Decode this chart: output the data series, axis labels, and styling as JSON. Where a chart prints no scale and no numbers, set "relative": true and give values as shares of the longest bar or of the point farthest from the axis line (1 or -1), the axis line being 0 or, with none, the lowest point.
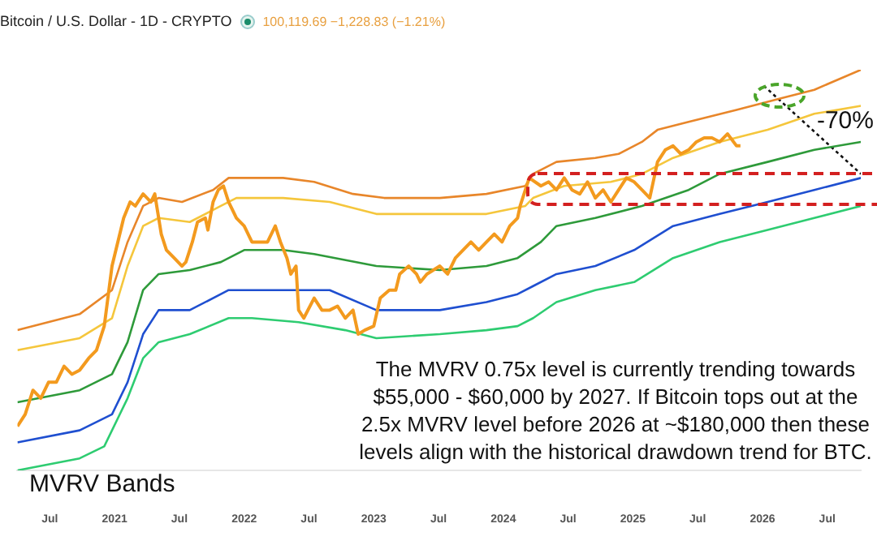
{
  "chart_data": {
    "type": "line",
    "relative": true,
    "title": "Bitcoin / U.S. Dollar - 1D - CRYPTO",
    "subtitle": "100,119.69 −1,228.83 (−1.21%)",
    "annotations": [
      "-70%",
      "MVRV Bands",
      "The MVRV 0.75x level is currently trending towards $55,000 - $60,000 by 2027. If Bitcoin tops out at the 2.5x MVRV level before 2026 at ~$180,000 then these levels align with the historical drawdown trend for BTC."
    ],
    "xlim": [
      2020.25,
      2026.76
    ],
    "xticks": [
      {
        "value": 2020.5,
        "label": "Jul"
      },
      2021,
      {
        "value": 2021.5,
        "label": "Jul"
      },
      2022,
      {
        "value": 2022.5,
        "label": "Jul"
      },
      2023,
      {
        "value": 2023.5,
        "label": "Jul"
      },
      2024,
      {
        "value": 2024.5,
        "label": "Jul"
      },
      2025,
      {
        "value": 2025.5,
        "label": "Jul"
      },
      2026,
      {
        "value": 2026.5,
        "label": "Jul"
      }
    ],
    "grid": false,
    "legend": false,
    "line_style": "solid",
    "marker": "none",
    "series": [
      {
        "color": "#e8862a",
        "x": [
          2020.25,
          2020.73,
          2020.98,
          2021.1,
          2021.22,
          2021.34,
          2021.52,
          2021.76,
          2021.88,
          2022.0,
          2022.3,
          2022.54,
          2022.84,
          2023.08,
          2023.51,
          2023.87,
          2024.17,
          2024.23,
          2024.41,
          2024.71,
          2024.89,
          2025.07,
          2025.19,
          2025.43,
          2025.8,
          2026.16,
          2026.4,
          2026.76
        ],
        "values": [
          0.35,
          0.39,
          0.45,
          0.57,
          0.66,
          0.68,
          0.67,
          0.7,
          0.73,
          0.73,
          0.73,
          0.72,
          0.69,
          0.68,
          0.68,
          0.69,
          0.71,
          0.74,
          0.77,
          0.78,
          0.79,
          0.82,
          0.85,
          0.87,
          0.9,
          0.93,
          0.95,
          1.0
        ]
      },
      {
        "color": "#f5c63c",
        "x": [
          2020.25,
          2020.73,
          2020.98,
          2021.1,
          2021.22,
          2021.34,
          2021.58,
          2021.82,
          2021.94,
          2022.3,
          2022.66,
          2023.02,
          2023.51,
          2023.87,
          2024.17,
          2024.23,
          2024.47,
          2024.83,
          2025.07,
          2025.31,
          2025.67,
          2026.04,
          2026.4,
          2026.76
        ],
        "values": [
          0.3,
          0.33,
          0.38,
          0.51,
          0.61,
          0.63,
          0.62,
          0.66,
          0.68,
          0.68,
          0.67,
          0.64,
          0.64,
          0.64,
          0.66,
          0.68,
          0.71,
          0.72,
          0.74,
          0.78,
          0.82,
          0.85,
          0.89,
          0.91
        ]
      },
      {
        "color": "#2e9a3a",
        "x": [
          2020.25,
          2020.73,
          2020.98,
          2021.1,
          2021.22,
          2021.34,
          2021.58,
          2021.82,
          2022.0,
          2022.3,
          2022.54,
          2023.02,
          2023.51,
          2023.87,
          2024.11,
          2024.29,
          2024.41,
          2024.71,
          2025.07,
          2025.43,
          2025.67,
          2026.04,
          2026.4,
          2026.76
        ],
        "values": [
          0.17,
          0.2,
          0.24,
          0.32,
          0.45,
          0.49,
          0.5,
          0.52,
          0.55,
          0.55,
          0.54,
          0.51,
          0.5,
          0.51,
          0.53,
          0.57,
          0.61,
          0.63,
          0.66,
          0.7,
          0.74,
          0.77,
          0.8,
          0.82
        ]
      },
      {
        "color": "#1f4fd0",
        "x": [
          2020.25,
          2020.73,
          2020.98,
          2021.1,
          2021.22,
          2021.34,
          2021.58,
          2021.88,
          2022.06,
          2022.3,
          2022.66,
          2023.02,
          2023.51,
          2023.87,
          2024.11,
          2024.23,
          2024.41,
          2024.71,
          2025.01,
          2025.31,
          2025.67,
          2026.04,
          2026.4,
          2026.76
        ],
        "values": [
          0.07,
          0.1,
          0.14,
          0.22,
          0.34,
          0.4,
          0.4,
          0.45,
          0.45,
          0.45,
          0.45,
          0.4,
          0.4,
          0.42,
          0.44,
          0.46,
          0.49,
          0.51,
          0.55,
          0.61,
          0.64,
          0.67,
          0.7,
          0.73
        ]
      },
      {
        "color": "#2ecc71",
        "x": [
          2020.25,
          2020.73,
          2020.92,
          2021.1,
          2021.22,
          2021.34,
          2021.58,
          2021.88,
          2022.06,
          2022.42,
          2022.78,
          2023.02,
          2023.51,
          2023.87,
          2024.11,
          2024.23,
          2024.41,
          2024.71,
          2025.01,
          2025.31,
          2025.67,
          2026.04,
          2026.4,
          2026.76
        ],
        "values": [
          0,
          0.03,
          0.06,
          0.18,
          0.28,
          0.32,
          0.34,
          0.38,
          0.38,
          0.37,
          0.35,
          0.33,
          0.34,
          0.35,
          0.36,
          0.38,
          0.42,
          0.45,
          0.47,
          0.53,
          0.57,
          0.6,
          0.63,
          0.66
        ]
      },
      {
        "color": "#111111",
        "line_style": "dotted",
        "x": [
          2026.01,
          2026.76
        ],
        "values": [
          0.96,
          0.74
        ]
      },
      {
        "color": "#f39a1e",
        "x": [
          2020.25,
          2020.31,
          2020.37,
          2020.43,
          2020.49,
          2020.55,
          2020.61,
          2020.67,
          2020.73,
          2020.8,
          2020.86,
          2020.92,
          2020.98,
          2021.01,
          2021.07,
          2021.12,
          2021.16,
          2021.22,
          2021.28,
          2021.31,
          2021.36,
          2021.4,
          2021.46,
          2021.52,
          2021.55,
          2021.6,
          2021.64,
          2021.7,
          2021.72,
          2021.76,
          2021.8,
          2021.84,
          2021.88,
          2021.94,
          2022.0,
          2022.06,
          2022.12,
          2022.18,
          2022.24,
          2022.28,
          2022.33,
          2022.36,
          2022.4,
          2022.42,
          2022.46,
          2022.54,
          2022.6,
          2022.66,
          2022.72,
          2022.78,
          2022.84,
          2022.88,
          2022.93,
          2023.0,
          2023.05,
          2023.12,
          2023.17,
          2023.2,
          2023.27,
          2023.33,
          2023.36,
          2023.41,
          2023.51,
          2023.57,
          2023.63,
          2023.75,
          2023.81,
          2023.87,
          2023.93,
          2023.99,
          2024.05,
          2024.11,
          2024.13,
          2024.17,
          2024.2,
          2024.29,
          2024.35,
          2024.41,
          2024.47,
          2024.53,
          2024.59,
          2024.65,
          2024.71,
          2024.77,
          2024.83,
          2024.89,
          2024.95,
          2025.01,
          2025.07,
          2025.13,
          2025.19,
          2025.25,
          2025.31,
          2025.37,
          2025.43,
          2025.49,
          2025.55,
          2025.61,
          2025.67,
          2025.73,
          2025.8,
          2025.83
        ],
        "values": [
          0.11,
          0.14,
          0.2,
          0.18,
          0.22,
          0.22,
          0.26,
          0.24,
          0.25,
          0.28,
          0.3,
          0.36,
          0.51,
          0.55,
          0.63,
          0.67,
          0.66,
          0.69,
          0.67,
          0.69,
          0.59,
          0.55,
          0.53,
          0.51,
          0.52,
          0.57,
          0.62,
          0.63,
          0.6,
          0.67,
          0.7,
          0.71,
          0.67,
          0.63,
          0.61,
          0.57,
          0.57,
          0.57,
          0.61,
          0.57,
          0.53,
          0.49,
          0.51,
          0.4,
          0.38,
          0.43,
          0.4,
          0.4,
          0.41,
          0.38,
          0.4,
          0.34,
          0.35,
          0.36,
          0.43,
          0.45,
          0.45,
          0.49,
          0.51,
          0.49,
          0.47,
          0.49,
          0.51,
          0.49,
          0.53,
          0.57,
          0.55,
          0.57,
          0.59,
          0.57,
          0.61,
          0.63,
          0.66,
          0.7,
          0.73,
          0.71,
          0.72,
          0.7,
          0.73,
          0.7,
          0.69,
          0.72,
          0.68,
          0.7,
          0.67,
          0.7,
          0.73,
          0.72,
          0.7,
          0.68,
          0.77,
          0.8,
          0.81,
          0.79,
          0.8,
          0.82,
          0.83,
          0.83,
          0.82,
          0.84,
          0.81,
          0.81
        ]
      }
    ]
  }
}
